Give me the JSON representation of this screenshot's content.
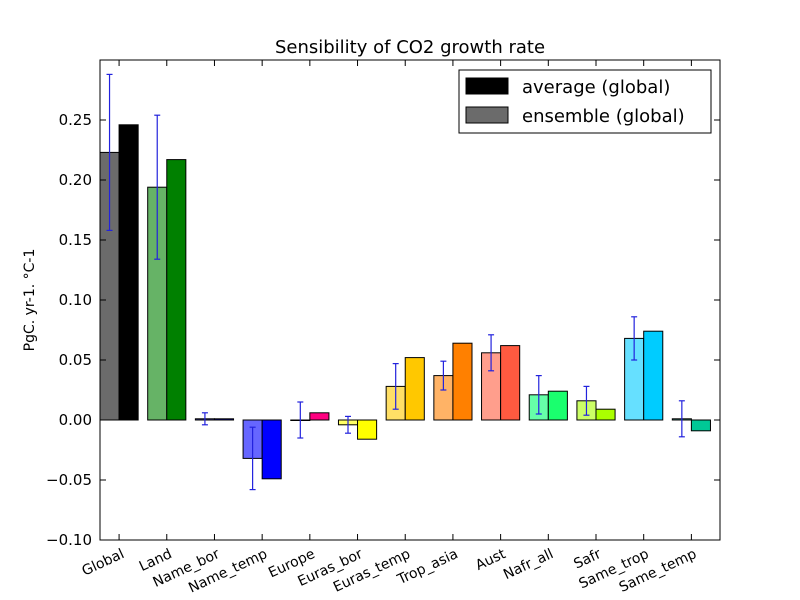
{
  "chart_data": {
    "type": "bar",
    "title": "Sensibility of CO2 growth rate",
    "xlabel": "",
    "ylabel": "PgC. yr-1. °C-1",
    "ylim": [
      -0.1,
      0.3
    ],
    "yticks": [
      -0.1,
      -0.05,
      0.0,
      0.05,
      0.1,
      0.15,
      0.2,
      0.25
    ],
    "ytick_labels": [
      "−0.10",
      "−0.05",
      "0.00",
      "0.05",
      "0.10",
      "0.15",
      "0.20",
      "0.25"
    ],
    "categories": [
      "Global",
      "Land",
      "Name_bor",
      "Name_temp",
      "Europe",
      "Euras_bor",
      "Euras_temp",
      "Trop_asia",
      "Aust",
      "Nafr_all",
      "Safr",
      "Same_trop",
      "Same_temp"
    ],
    "series": [
      {
        "name": "ensemble (global)",
        "values": [
          0.223,
          0.194,
          0.001,
          -0.032,
          0.0,
          -0.004,
          0.028,
          0.037,
          0.056,
          0.021,
          0.016,
          0.068,
          0.001
        ],
        "errors": [
          0.065,
          0.06,
          0.005,
          0.026,
          0.015,
          0.007,
          0.019,
          0.012,
          0.015,
          0.016,
          0.012,
          0.018,
          0.015
        ],
        "colors": [
          "#6b6b6b",
          "#66b366",
          "#6666ff",
          "#6666ff",
          "#ff66b8",
          "#ffff66",
          "#ffdf66",
          "#ffb366",
          "#ff9e8c",
          "#66ffa8",
          "#ccff66",
          "#66e0ff",
          "#66e8cc"
        ]
      },
      {
        "name": "average (global)",
        "values": [
          0.246,
          0.217,
          0.001,
          -0.049,
          0.006,
          -0.016,
          0.052,
          0.064,
          0.062,
          0.024,
          0.009,
          0.074,
          -0.009
        ],
        "colors": [
          "#000000",
          "#008000",
          "#0000ff",
          "#0000ff",
          "#ff0080",
          "#ffff00",
          "#ffc800",
          "#ff8000",
          "#ff5a40",
          "#1aff6e",
          "#aaff00",
          "#00ccff",
          "#00c896"
        ]
      }
    ],
    "error_color": "#2222dd",
    "grid": false,
    "legend": {
      "placement": "top-right",
      "entries": [
        {
          "label": "average (global)",
          "color": "#000000"
        },
        {
          "label": "ensemble (global)",
          "color": "#6b6b6b"
        }
      ]
    }
  }
}
